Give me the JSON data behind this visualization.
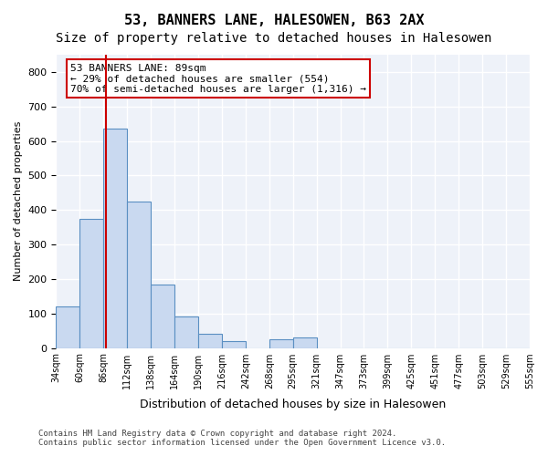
{
  "title_line1": "53, BANNERS LANE, HALESOWEN, B63 2AX",
  "title_line2": "Size of property relative to detached houses in Halesowen",
  "xlabel": "Distribution of detached houses by size in Halesowen",
  "ylabel": "Number of detached properties",
  "footnote": "Contains HM Land Registry data © Crown copyright and database right 2024.\nContains public sector information licensed under the Open Government Licence v3.0.",
  "bin_labels": [
    "34sqm",
    "60sqm",
    "86sqm",
    "112sqm",
    "138sqm",
    "164sqm",
    "190sqm",
    "216sqm",
    "242sqm",
    "268sqm",
    "295sqm",
    "321sqm",
    "347sqm",
    "373sqm",
    "399sqm",
    "425sqm",
    "451sqm",
    "477sqm",
    "503sqm",
    "529sqm",
    "555sqm"
  ],
  "bar_values": [
    120,
    375,
    635,
    425,
    185,
    90,
    40,
    20,
    0,
    25,
    30,
    0,
    0,
    0,
    0,
    0,
    0,
    0,
    0,
    0
  ],
  "bar_color": "#c9d9f0",
  "bar_edge_color": "#5a8fc2",
  "property_line_x": 2,
  "property_line_color": "#cc0000",
  "annotation_text": "53 BANNERS LANE: 89sqm\n← 29% of detached houses are smaller (554)\n70% of semi-detached houses are larger (1,316) →",
  "annotation_box_color": "#cc0000",
  "ylim": [
    0,
    850
  ],
  "yticks": [
    0,
    100,
    200,
    300,
    400,
    500,
    600,
    700,
    800
  ],
  "background_color": "#eef2f9",
  "grid_color": "#ffffff",
  "title_fontsize": 11,
  "subtitle_fontsize": 10
}
